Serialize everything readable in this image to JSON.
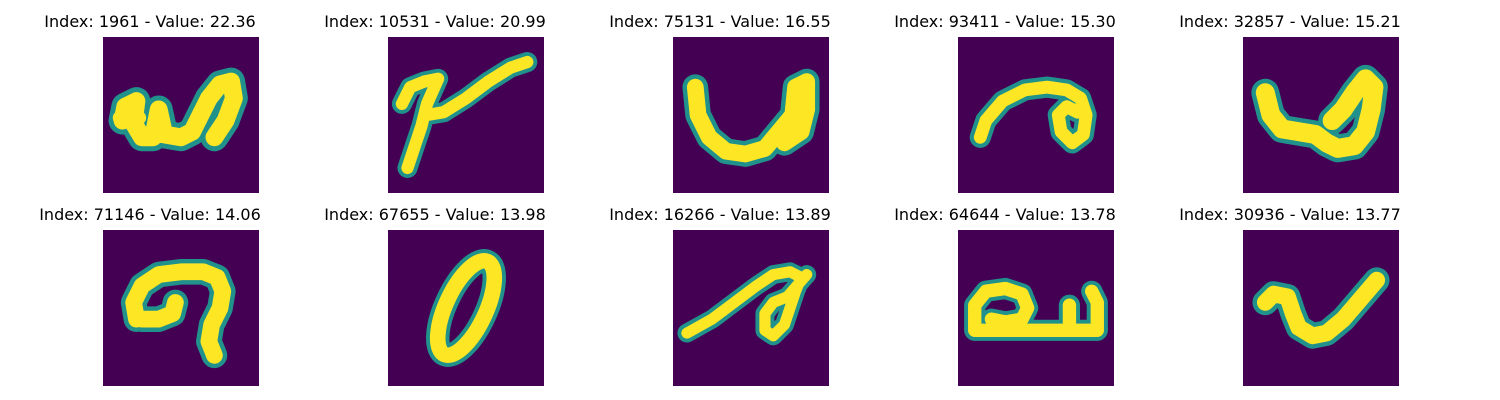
{
  "colors": {
    "background": "#440154",
    "glyph_core": "#fde725",
    "glyph_edge": "#21918c",
    "glyph_mid": "#5ec962"
  },
  "grid": {
    "rows": [
      [
        {
          "title": "Index: 1961 - Value: 22.36",
          "glyph": "w-shape"
        },
        {
          "title": "Index: 10531 - Value: 20.99",
          "glyph": "y-shape"
        },
        {
          "title": "Index: 75131 - Value: 16.55",
          "glyph": "u-shape"
        },
        {
          "title": "Index: 93411 - Value: 15.30",
          "glyph": "a-loop-shape"
        },
        {
          "title": "Index: 32857 - Value: 15.21",
          "glyph": "u-bold-shape"
        }
      ],
      [
        {
          "title": "Index: 71146 - Value: 14.06",
          "glyph": "hook-shape"
        },
        {
          "title": "Index: 67655 - Value: 13.98",
          "glyph": "zero-shape"
        },
        {
          "title": "Index: 16266 - Value: 13.89",
          "glyph": "loop-stroke-shape"
        },
        {
          "title": "Index: 64644 - Value: 13.78",
          "glyph": "box-u-shape"
        },
        {
          "title": "Index: 30936 - Value: 13.77",
          "glyph": "check-shape"
        }
      ]
    ]
  }
}
